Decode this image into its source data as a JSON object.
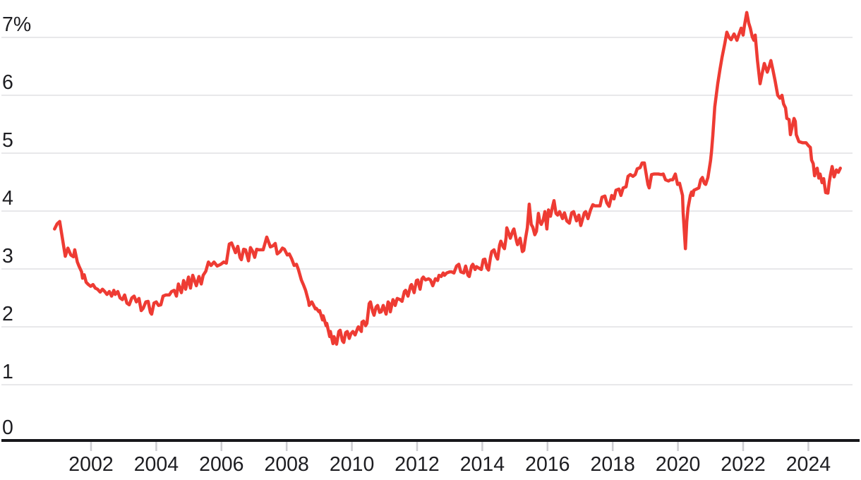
{
  "chart_data": {
    "type": "line",
    "title": "",
    "unit": "%",
    "legend": "none",
    "grid": "horizontal",
    "line_color": "#ee3b33",
    "grid_color": "#e8e8ea",
    "axis_line_color": "#17171b",
    "tick_mark_color": "#cdcdd1",
    "label_color": "#1d1d21",
    "background_color": "#ffffff",
    "y_axis": {
      "range": [
        0,
        7.5
      ],
      "ticks": [
        {
          "value": 7,
          "label": "7%"
        },
        {
          "value": 6,
          "label": "6"
        },
        {
          "value": 5,
          "label": "5"
        },
        {
          "value": 4,
          "label": "4"
        },
        {
          "value": 3,
          "label": "3"
        },
        {
          "value": 2,
          "label": "2"
        },
        {
          "value": 1,
          "label": "1"
        },
        {
          "value": 0,
          "label": "0"
        }
      ]
    },
    "x_axis": {
      "range": [
        2000.8,
        2025.3
      ],
      "ticks": [
        {
          "value": 2002,
          "label": "2002"
        },
        {
          "value": 2004,
          "label": "2004"
        },
        {
          "value": 2006,
          "label": "2006"
        },
        {
          "value": 2008,
          "label": "2008"
        },
        {
          "value": 2010,
          "label": "2010"
        },
        {
          "value": 2012,
          "label": "2012"
        },
        {
          "value": 2014,
          "label": "2014"
        },
        {
          "value": 2016,
          "label": "2016"
        },
        {
          "value": 2018,
          "label": "2018"
        },
        {
          "value": 2020,
          "label": "2020"
        },
        {
          "value": 2022,
          "label": "2022"
        },
        {
          "value": 2024,
          "label": "2024"
        }
      ]
    },
    "points": [
      [
        2000.88,
        3.69
      ],
      [
        2000.96,
        3.78
      ],
      [
        2001.04,
        3.82
      ],
      [
        2001.13,
        3.5
      ],
      [
        2001.21,
        3.22
      ],
      [
        2001.29,
        3.36
      ],
      [
        2001.38,
        3.24
      ],
      [
        2001.46,
        3.21
      ],
      [
        2001.5,
        3.33
      ],
      [
        2001.58,
        3.12
      ],
      [
        2001.63,
        3.05
      ],
      [
        2001.71,
        2.95
      ],
      [
        2001.74,
        2.84
      ],
      [
        2001.79,
        2.9
      ],
      [
        2001.85,
        2.77
      ],
      [
        2001.92,
        2.73
      ],
      [
        2001.99,
        2.7
      ],
      [
        2002.06,
        2.73
      ],
      [
        2002.13,
        2.67
      ],
      [
        2002.2,
        2.65
      ],
      [
        2002.28,
        2.6
      ],
      [
        2002.35,
        2.65
      ],
      [
        2002.42,
        2.61
      ],
      [
        2002.49,
        2.56
      ],
      [
        2002.56,
        2.61
      ],
      [
        2002.63,
        2.53
      ],
      [
        2002.7,
        2.63
      ],
      [
        2002.74,
        2.56
      ],
      [
        2002.82,
        2.61
      ],
      [
        2002.89,
        2.5
      ],
      [
        2002.96,
        2.47
      ],
      [
        2003.03,
        2.55
      ],
      [
        2003.1,
        2.41
      ],
      [
        2003.17,
        2.38
      ],
      [
        2003.25,
        2.5
      ],
      [
        2003.32,
        2.53
      ],
      [
        2003.39,
        2.43
      ],
      [
        2003.47,
        2.49
      ],
      [
        2003.54,
        2.28
      ],
      [
        2003.6,
        2.32
      ],
      [
        2003.68,
        2.43
      ],
      [
        2003.75,
        2.44
      ],
      [
        2003.82,
        2.25
      ],
      [
        2003.86,
        2.22
      ],
      [
        2003.93,
        2.41
      ],
      [
        2004,
        2.43
      ],
      [
        2004.07,
        2.37
      ],
      [
        2004.14,
        2.38
      ],
      [
        2004.21,
        2.53
      ],
      [
        2004.29,
        2.55
      ],
      [
        2004.4,
        2.55
      ],
      [
        2004.47,
        2.61
      ],
      [
        2004.55,
        2.63
      ],
      [
        2004.62,
        2.53
      ],
      [
        2004.68,
        2.74
      ],
      [
        2004.77,
        2.59
      ],
      [
        2004.84,
        2.8
      ],
      [
        2004.9,
        2.65
      ],
      [
        2004.99,
        2.86
      ],
      [
        2005.05,
        2.67
      ],
      [
        2005.12,
        2.89
      ],
      [
        2005.23,
        2.71
      ],
      [
        2005.31,
        2.87
      ],
      [
        2005.38,
        2.74
      ],
      [
        2005.44,
        2.89
      ],
      [
        2005.52,
        2.96
      ],
      [
        2005.6,
        3.12
      ],
      [
        2005.68,
        3.06
      ],
      [
        2005.77,
        3.12
      ],
      [
        2005.87,
        3.05
      ],
      [
        2005.98,
        3.08
      ],
      [
        2006.07,
        3.12
      ],
      [
        2006.15,
        3.1
      ],
      [
        2006.24,
        3.43
      ],
      [
        2006.31,
        3.45
      ],
      [
        2006.39,
        3.34
      ],
      [
        2006.43,
        3.28
      ],
      [
        2006.5,
        3.39
      ],
      [
        2006.57,
        3.2
      ],
      [
        2006.61,
        3.16
      ],
      [
        2006.68,
        3.34
      ],
      [
        2006.74,
        3.33
      ],
      [
        2006.83,
        3.14
      ],
      [
        2006.89,
        3.37
      ],
      [
        2006.96,
        3.3
      ],
      [
        2007.02,
        3.2
      ],
      [
        2007.08,
        3.34
      ],
      [
        2007.15,
        3.33
      ],
      [
        2007.28,
        3.33
      ],
      [
        2007.39,
        3.55
      ],
      [
        2007.5,
        3.38
      ],
      [
        2007.58,
        3.4
      ],
      [
        2007.65,
        3.44
      ],
      [
        2007.71,
        3.26
      ],
      [
        2007.8,
        3.3
      ],
      [
        2007.87,
        3.36
      ],
      [
        2007.93,
        3.34
      ],
      [
        2008.02,
        3.24
      ],
      [
        2008.08,
        3.26
      ],
      [
        2008.15,
        3.18
      ],
      [
        2008.23,
        3.06
      ],
      [
        2008.3,
        3.08
      ],
      [
        2008.36,
        2.99
      ],
      [
        2008.45,
        2.81
      ],
      [
        2008.51,
        2.73
      ],
      [
        2008.58,
        2.63
      ],
      [
        2008.67,
        2.44
      ],
      [
        2008.69,
        2.37
      ],
      [
        2008.77,
        2.43
      ],
      [
        2008.8,
        2.4
      ],
      [
        2008.88,
        2.31
      ],
      [
        2008.91,
        2.32
      ],
      [
        2008.99,
        2.26
      ],
      [
        2009.01,
        2.28
      ],
      [
        2009.1,
        2.12
      ],
      [
        2009.12,
        2.19
      ],
      [
        2009.21,
        2.02
      ],
      [
        2009.23,
        2.06
      ],
      [
        2009.32,
        1.83
      ],
      [
        2009.34,
        1.92
      ],
      [
        2009.42,
        1.71
      ],
      [
        2009.45,
        1.83
      ],
      [
        2009.53,
        1.7
      ],
      [
        2009.6,
        1.92
      ],
      [
        2009.64,
        1.94
      ],
      [
        2009.71,
        1.76
      ],
      [
        2009.75,
        1.73
      ],
      [
        2009.81,
        1.9
      ],
      [
        2009.86,
        1.92
      ],
      [
        2009.92,
        1.8
      ],
      [
        2009.97,
        1.88
      ],
      [
        2010.03,
        1.92
      ],
      [
        2010.1,
        1.86
      ],
      [
        2010.18,
        1.98
      ],
      [
        2010.2,
        2
      ],
      [
        2010.29,
        1.92
      ],
      [
        2010.31,
        2.08
      ],
      [
        2010.36,
        2.1
      ],
      [
        2010.42,
        2.02
      ],
      [
        2010.46,
        2.06
      ],
      [
        2010.53,
        2.4
      ],
      [
        2010.57,
        2.43
      ],
      [
        2010.64,
        2.26
      ],
      [
        2010.68,
        2.2
      ],
      [
        2010.74,
        2.34
      ],
      [
        2010.79,
        2.37
      ],
      [
        2010.85,
        2.25
      ],
      [
        2010.9,
        2.26
      ],
      [
        2010.96,
        2.37
      ],
      [
        2011.05,
        2.22
      ],
      [
        2011.11,
        2.43
      ],
      [
        2011.15,
        2.4
      ],
      [
        2011.18,
        2.26
      ],
      [
        2011.26,
        2.47
      ],
      [
        2011.29,
        2.44
      ],
      [
        2011.33,
        2.37
      ],
      [
        2011.39,
        2.49
      ],
      [
        2011.48,
        2.47
      ],
      [
        2011.54,
        2.44
      ],
      [
        2011.61,
        2.61
      ],
      [
        2011.65,
        2.63
      ],
      [
        2011.72,
        2.53
      ],
      [
        2011.8,
        2.71
      ],
      [
        2011.83,
        2.73
      ],
      [
        2011.91,
        2.59
      ],
      [
        2011.98,
        2.8
      ],
      [
        2012.02,
        2.81
      ],
      [
        2012.09,
        2.65
      ],
      [
        2012.15,
        2.83
      ],
      [
        2012.19,
        2.86
      ],
      [
        2012.26,
        2.81
      ],
      [
        2012.35,
        2.83
      ],
      [
        2012.41,
        2.81
      ],
      [
        2012.48,
        2.71
      ],
      [
        2012.56,
        2.83
      ],
      [
        2012.63,
        2.8
      ],
      [
        2012.67,
        2.89
      ],
      [
        2012.74,
        2.87
      ],
      [
        2012.8,
        2.93
      ],
      [
        2012.84,
        2.89
      ],
      [
        2012.91,
        2.93
      ],
      [
        2013,
        2.95
      ],
      [
        2013.06,
        2.95
      ],
      [
        2013.13,
        2.93
      ],
      [
        2013.21,
        3.05
      ],
      [
        2013.28,
        3.08
      ],
      [
        2013.34,
        2.95
      ],
      [
        2013.43,
        2.93
      ],
      [
        2013.49,
        3.05
      ],
      [
        2013.56,
        2.89
      ],
      [
        2013.6,
        2.87
      ],
      [
        2013.67,
        3.05
      ],
      [
        2013.71,
        3.08
      ],
      [
        2013.78,
        2.99
      ],
      [
        2013.82,
        3.04
      ],
      [
        2013.88,
        3.02
      ],
      [
        2013.97,
        2.99
      ],
      [
        2014.03,
        3.16
      ],
      [
        2014.08,
        3.17
      ],
      [
        2014.14,
        3.02
      ],
      [
        2014.19,
        2.98
      ],
      [
        2014.25,
        3.2
      ],
      [
        2014.29,
        3.3
      ],
      [
        2014.36,
        3.33
      ],
      [
        2014.42,
        3.22
      ],
      [
        2014.47,
        3.17
      ],
      [
        2014.53,
        3.41
      ],
      [
        2014.57,
        3.48
      ],
      [
        2014.64,
        3.38
      ],
      [
        2014.68,
        3.35
      ],
      [
        2014.73,
        3.54
      ],
      [
        2014.75,
        3.71
      ],
      [
        2014.83,
        3.59
      ],
      [
        2014.86,
        3.53
      ],
      [
        2014.94,
        3.66
      ],
      [
        2014.97,
        3.69
      ],
      [
        2015.05,
        3.48
      ],
      [
        2015.08,
        3.42
      ],
      [
        2015.16,
        3.53
      ],
      [
        2015.23,
        3.3
      ],
      [
        2015.27,
        3.32
      ],
      [
        2015.33,
        3.54
      ],
      [
        2015.38,
        3.71
      ],
      [
        2015.44,
        4.12
      ],
      [
        2015.5,
        3.77
      ],
      [
        2015.55,
        3.72
      ],
      [
        2015.61,
        3.59
      ],
      [
        2015.66,
        3.65
      ],
      [
        2015.72,
        3.96
      ],
      [
        2015.76,
        3.83
      ],
      [
        2015.81,
        3.77
      ],
      [
        2015.87,
        3.85
      ],
      [
        2015.92,
        3.99
      ],
      [
        2015.98,
        3.69
      ],
      [
        2016.03,
        4.02
      ],
      [
        2016.09,
        3.91
      ],
      [
        2016.16,
        4.09
      ],
      [
        2016.2,
        4.18
      ],
      [
        2016.26,
        3.96
      ],
      [
        2016.31,
        3.93
      ],
      [
        2016.37,
        3.99
      ],
      [
        2016.46,
        3.87
      ],
      [
        2016.52,
        3.97
      ],
      [
        2016.59,
        3.83
      ],
      [
        2016.67,
        3.79
      ],
      [
        2016.74,
        3.97
      ],
      [
        2016.8,
        3.99
      ],
      [
        2016.89,
        3.83
      ],
      [
        2016.96,
        3.93
      ],
      [
        2017.02,
        3.75
      ],
      [
        2017.13,
        3.97
      ],
      [
        2017.17,
        3.99
      ],
      [
        2017.24,
        3.87
      ],
      [
        2017.32,
        4.02
      ],
      [
        2017.39,
        4.11
      ],
      [
        2017.45,
        4.09
      ],
      [
        2017.54,
        4.09
      ],
      [
        2017.61,
        4.09
      ],
      [
        2017.67,
        4.24
      ],
      [
        2017.76,
        4.26
      ],
      [
        2017.82,
        4.14
      ],
      [
        2017.89,
        4.08
      ],
      [
        2017.97,
        4.27
      ],
      [
        2018.04,
        4.21
      ],
      [
        2018.1,
        4.36
      ],
      [
        2018.19,
        4.38
      ],
      [
        2018.25,
        4.27
      ],
      [
        2018.32,
        4.4
      ],
      [
        2018.41,
        4.42
      ],
      [
        2018.47,
        4.6
      ],
      [
        2018.54,
        4.63
      ],
      [
        2018.62,
        4.6
      ],
      [
        2018.69,
        4.63
      ],
      [
        2018.75,
        4.73
      ],
      [
        2018.84,
        4.75
      ],
      [
        2018.9,
        4.83
      ],
      [
        2018.97,
        4.83
      ],
      [
        2019.08,
        4.46
      ],
      [
        2019.12,
        4.4
      ],
      [
        2019.19,
        4.63
      ],
      [
        2019.27,
        4.64
      ],
      [
        2019.4,
        4.64
      ],
      [
        2019.49,
        4.63
      ],
      [
        2019.55,
        4.64
      ],
      [
        2019.62,
        4.54
      ],
      [
        2019.71,
        4.52
      ],
      [
        2019.77,
        4.54
      ],
      [
        2019.84,
        4.54
      ],
      [
        2019.92,
        4.64
      ],
      [
        2019.99,
        4.46
      ],
      [
        2020.05,
        4.48
      ],
      [
        2020.14,
        4.27
      ],
      [
        2020.16,
        3.97
      ],
      [
        2020.23,
        3.35
      ],
      [
        2020.27,
        3.81
      ],
      [
        2020.31,
        4.05
      ],
      [
        2020.38,
        4.27
      ],
      [
        2020.42,
        4.33
      ],
      [
        2020.46,
        4.27
      ],
      [
        2020.49,
        4.36
      ],
      [
        2020.57,
        4.38
      ],
      [
        2020.64,
        4.4
      ],
      [
        2020.7,
        4.54
      ],
      [
        2020.75,
        4.58
      ],
      [
        2020.81,
        4.48
      ],
      [
        2020.85,
        4.46
      ],
      [
        2020.92,
        4.58
      ],
      [
        2021,
        4.87
      ],
      [
        2021.03,
        5.03
      ],
      [
        2021.07,
        5.3
      ],
      [
        2021.13,
        5.8
      ],
      [
        2021.22,
        6.2
      ],
      [
        2021.29,
        6.45
      ],
      [
        2021.35,
        6.65
      ],
      [
        2021.44,
        6.9
      ],
      [
        2021.5,
        7.09
      ],
      [
        2021.57,
        7
      ],
      [
        2021.63,
        6.96
      ],
      [
        2021.72,
        7.06
      ],
      [
        2021.81,
        6.95
      ],
      [
        2021.87,
        7.05
      ],
      [
        2021.94,
        7.16
      ],
      [
        2022,
        7.04
      ],
      [
        2022.04,
        7.2
      ],
      [
        2022.11,
        7.43
      ],
      [
        2022.17,
        7.25
      ],
      [
        2022.22,
        7.16
      ],
      [
        2022.28,
        7.01
      ],
      [
        2022.33,
        6.95
      ],
      [
        2022.37,
        7.04
      ],
      [
        2022.44,
        6.6
      ],
      [
        2022.52,
        6.2
      ],
      [
        2022.59,
        6.4
      ],
      [
        2022.65,
        6.55
      ],
      [
        2022.74,
        6.4
      ],
      [
        2022.8,
        6.5
      ],
      [
        2022.85,
        6.6
      ],
      [
        2022.91,
        6.45
      ],
      [
        2022.98,
        6.25
      ],
      [
        2023.06,
        6
      ],
      [
        2023.13,
        5.95
      ],
      [
        2023.19,
        6
      ],
      [
        2023.24,
        5.85
      ],
      [
        2023.3,
        5.78
      ],
      [
        2023.34,
        5.6
      ],
      [
        2023.41,
        5.58
      ],
      [
        2023.45,
        5.32
      ],
      [
        2023.56,
        5.6
      ],
      [
        2023.6,
        5.55
      ],
      [
        2023.63,
        5.32
      ],
      [
        2023.71,
        5.2
      ],
      [
        2023.82,
        5.18
      ],
      [
        2023.93,
        5.18
      ],
      [
        2024,
        5.13
      ],
      [
        2024.06,
        5.1
      ],
      [
        2024.1,
        4.88
      ],
      [
        2024.15,
        4.82
      ],
      [
        2024.19,
        4.61
      ],
      [
        2024.23,
        4.71
      ],
      [
        2024.27,
        4.74
      ],
      [
        2024.32,
        4.57
      ],
      [
        2024.36,
        4.64
      ],
      [
        2024.42,
        4.49
      ],
      [
        2024.47,
        4.56
      ],
      [
        2024.53,
        4.32
      ],
      [
        2024.6,
        4.31
      ],
      [
        2024.64,
        4.5
      ],
      [
        2024.68,
        4.63
      ],
      [
        2024.73,
        4.77
      ],
      [
        2024.79,
        4.59
      ],
      [
        2024.86,
        4.71
      ],
      [
        2024.92,
        4.67
      ],
      [
        2024.98,
        4.74
      ]
    ]
  }
}
